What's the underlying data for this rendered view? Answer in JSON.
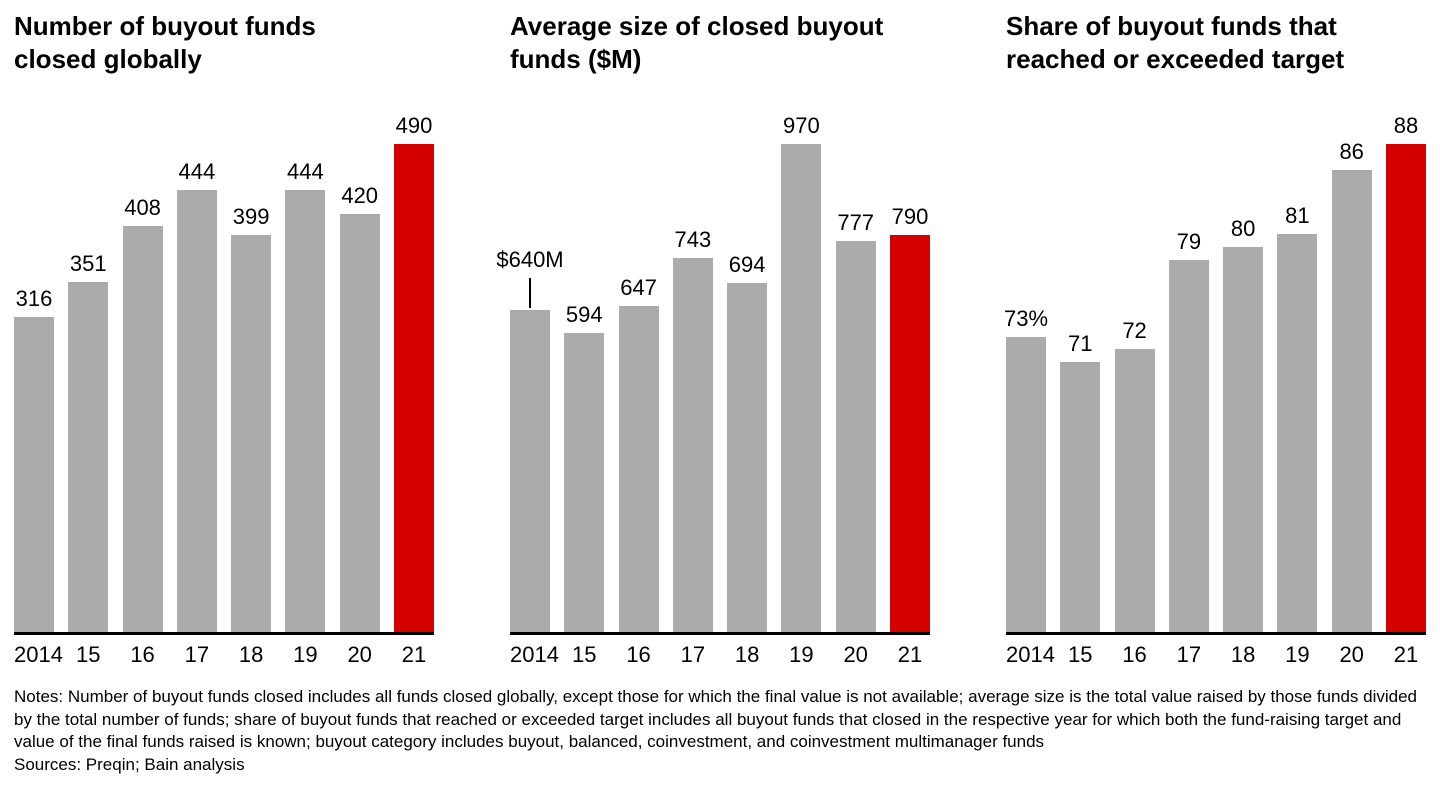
{
  "page": {
    "notes": "Notes: Number of buyout funds closed includes all funds closed globally, except those for which the final value is not available; average size is the total value raised by those funds divided by the total number of funds; share of buyout funds that reached or exceeded target includes all buyout funds that closed in the respective year for which both the fund-raising target and value of the final funds raised is known; buyout category includes buyout, balanced, coinvestment, and coinvestment multimanager funds",
    "sources": "Sources: Preqin; Bain analysis"
  },
  "colors": {
    "bar": "#ababab",
    "highlight": "#d40000",
    "axis": "#000000"
  },
  "chart_data": [
    {
      "type": "bar",
      "title": "Number of buyout funds\nclosed globally",
      "categories": [
        "2014",
        "15",
        "16",
        "17",
        "18",
        "19",
        "20",
        "21"
      ],
      "values": [
        316,
        351,
        408,
        444,
        399,
        444,
        420,
        490
      ],
      "labels": [
        "316",
        "351",
        "408",
        "444",
        "399",
        "444",
        "420",
        "490"
      ],
      "ylim": [
        0,
        490
      ],
      "highlight_index": 7,
      "legend": "none",
      "grid": false
    },
    {
      "type": "bar",
      "title": "Average size of closed buyout\nfunds ($M)",
      "categories": [
        "2014",
        "15",
        "16",
        "17",
        "18",
        "19",
        "20",
        "21"
      ],
      "values": [
        640,
        594,
        647,
        743,
        694,
        970,
        777,
        790
      ],
      "labels": [
        "$640M",
        "594",
        "647",
        "743",
        "694",
        "970",
        "777",
        "790"
      ],
      "ylim": [
        0,
        970
      ],
      "highlight_index": 7,
      "callout_index": 0,
      "legend": "none",
      "grid": false
    },
    {
      "type": "bar",
      "title": "Share of buyout funds that\nreached or exceeded target",
      "categories": [
        "2014",
        "15",
        "16",
        "17",
        "18",
        "19",
        "20",
        "21"
      ],
      "values": [
        73,
        71,
        72,
        79,
        80,
        81,
        86,
        88
      ],
      "labels": [
        "73%",
        "71",
        "72",
        "79",
        "80",
        "81",
        "86",
        "88"
      ],
      "ylim": [
        50,
        88
      ],
      "highlight_index": 7,
      "legend": "none",
      "grid": false
    }
  ]
}
